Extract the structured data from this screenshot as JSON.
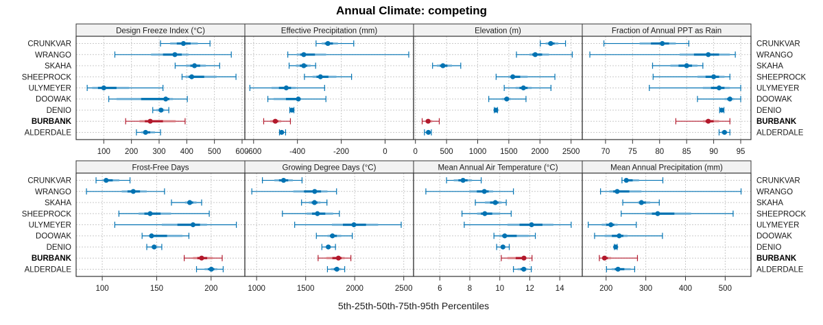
{
  "chart_data": {
    "type": "dot-interval",
    "title": "Annual Climate: competing",
    "xlabel": "5th-25th-50th-75th-95th Percentiles",
    "interval_definition": [
      "p5",
      "p25",
      "p50",
      "p75",
      "p95"
    ],
    "colors": {
      "default": "#0072B2",
      "default_light": "#6BAED6",
      "highlight": "#B2182B",
      "highlight_light": "#D97A80"
    },
    "categories": [
      "CRUNKVAR",
      "WRANGO",
      "SKAHA",
      "SHEEPROCK",
      "ULYMEYER",
      "DOOWAK",
      "DENIO",
      "BURBANK",
      "ALDERDALE"
    ],
    "highlight": "BURBANK",
    "panels": [
      {
        "title": "Design Freeze Index (°C)",
        "xlim": [
          0,
          610
        ],
        "ticks": [
          100,
          200,
          300,
          400,
          500,
          600
        ],
        "tick_labels": [
          "100",
          "200",
          "300",
          "400",
          "500",
          "600"
        ],
        "series": {
          "CRUNKVAR": [
            305,
            340,
            388,
            440,
            484
          ],
          "WRANGO": [
            140,
            271,
            357,
            407,
            561
          ],
          "SKAHA": [
            358,
            398,
            428,
            469,
            519
          ],
          "SHEEPROCK": [
            383,
            395,
            418,
            508,
            578
          ],
          "ULYMEYER": [
            40,
            58,
            100,
            192,
            314
          ],
          "DOOWAK": [
            118,
            146,
            324,
            350,
            402
          ],
          "DENIO": [
            277,
            290,
            307,
            320,
            335
          ],
          "BURBANK": [
            179,
            229,
            268,
            360,
            394
          ],
          "ALDERDALE": [
            218,
            235,
            251,
            285,
            305
          ]
        }
      },
      {
        "title": "Effective Precipitation (mm)",
        "xlim": [
          -640,
          130
        ],
        "ticks": [
          -600,
          -400,
          -200,
          0
        ],
        "tick_labels": [
          "-600",
          "-400",
          "-200",
          "0"
        ],
        "series": {
          "CRUNKVAR": [
            -315,
            -289,
            -261,
            -215,
            -143
          ],
          "WRANGO": [
            -444,
            -403,
            -371,
            -269,
            108
          ],
          "SKAHA": [
            -438,
            -407,
            -371,
            -340,
            -317
          ],
          "SHEEPROCK": [
            -368,
            -331,
            -295,
            -222,
            -153
          ],
          "ULYMEYER": [
            -617,
            -518,
            -451,
            -407,
            -276
          ],
          "DOOWAK": [
            -535,
            -509,
            -396,
            -384,
            -270
          ],
          "DENIO": [
            -435,
            -429,
            -425,
            -420,
            -416
          ],
          "BURBANK": [
            -554,
            -524,
            -501,
            -474,
            -432
          ],
          "ALDERDALE": [
            -482,
            -477,
            -472,
            -463,
            -454
          ]
        }
      },
      {
        "title": "Elevation (m)",
        "xlim": [
          -30,
          2680
        ],
        "ticks": [
          0,
          500,
          1000,
          1500,
          2000,
          2500
        ],
        "tick_labels": [
          "0",
          "500",
          "1000",
          "1500",
          "2000",
          "2500"
        ],
        "series": {
          "CRUNKVAR": [
            2006,
            2091,
            2173,
            2296,
            2411
          ],
          "WRANGO": [
            1623,
            1831,
            1924,
            2147,
            2519
          ],
          "SKAHA": [
            275,
            345,
            442,
            587,
            728
          ],
          "SHEEPROCK": [
            1296,
            1497,
            1564,
            1802,
            2240
          ],
          "ULYMEYER": [
            1426,
            1608,
            1735,
            1868,
            2177
          ],
          "DOOWAK": [
            1178,
            1386,
            1467,
            1534,
            1776
          ],
          "DENIO": [
            1267,
            1281,
            1293,
            1304,
            1319
          ],
          "BURBANK": [
            108,
            160,
            204,
            271,
            383
          ],
          "ALDERDALE": [
            145,
            175,
            208,
            227,
            256
          ]
        }
      },
      {
        "title": "Fraction of Annual PPT as Rain",
        "xlim": [
          65.7,
          96.9
        ],
        "ticks": [
          70,
          75,
          80,
          85,
          90,
          95
        ],
        "tick_labels": [
          "70",
          "75",
          "80",
          "85",
          "90",
          "95"
        ],
        "series": {
          "CRUNKVAR": [
            69.7,
            76.3,
            80.5,
            83.0,
            85.4
          ],
          "WRANGO": [
            67.1,
            83.7,
            89.0,
            93.0,
            94.0
          ],
          "SKAHA": [
            78.7,
            82.0,
            85.0,
            87.0,
            88.0
          ],
          "SHEEPROCK": [
            78.8,
            87.0,
            90.0,
            92.0,
            93.0
          ],
          "ULYMEYER": [
            78.1,
            88.0,
            91.0,
            93.0,
            95.0
          ],
          "DOOWAK": [
            87.0,
            92.0,
            93.0,
            93.8,
            95.0
          ],
          "DENIO": [
            91.1,
            91.3,
            91.5,
            91.7,
            91.9
          ],
          "BURBANK": [
            83.0,
            88.0,
            89.0,
            91.0,
            93.0
          ],
          "ALDERDALE": [
            91.0,
            91.4,
            92.0,
            92.5,
            93.0
          ]
        }
      },
      {
        "title": "Frost-Free Days",
        "xlim": [
          76,
          231
        ],
        "ticks": [
          100,
          150,
          200
        ],
        "tick_labels": [
          "100",
          "150",
          "200"
        ],
        "series": {
          "CRUNKVAR": [
            94.3,
            100.4,
            103.6,
            115.7,
            125.5
          ],
          "WRANGO": [
            85.5,
            117.9,
            128.5,
            140.9,
            157.2
          ],
          "SKAHA": [
            163.6,
            176.0,
            180.4,
            186.6,
            191.3
          ],
          "SHEEPROCK": [
            115.3,
            133.4,
            144.0,
            163.2,
            198.3
          ],
          "ULYMEYER": [
            111.5,
            154.7,
            183.4,
            196.2,
            223.2
          ],
          "DOOWAK": [
            136.6,
            143.0,
            145.3,
            173.8,
            179.6
          ],
          "DENIO": [
            140.9,
            145.1,
            147.7,
            151.5,
            154.7
          ],
          "BURBANK": [
            175.3,
            183.4,
            191.3,
            201.5,
            210.2
          ],
          "ALDERDALE": [
            186.6,
            194.0,
            200.2,
            205.7,
            211.1
          ]
        }
      },
      {
        "title": "Growing Degree Days (°C)",
        "xlim": [
          880,
          2600
        ],
        "ticks": [
          1000,
          1500,
          2000,
          2500
        ],
        "tick_labels": [
          "1000",
          "1500",
          "2000",
          "2500"
        ],
        "series": {
          "CRUNKVAR": [
            1059,
            1181,
            1275,
            1369,
            1463
          ],
          "WRANGO": [
            951,
            1374,
            1592,
            1722,
            1815
          ],
          "SKAHA": [
            1458,
            1533,
            1590,
            1651,
            1717
          ],
          "SHEEPROCK": [
            1263,
            1510,
            1620,
            1780,
            1844
          ],
          "ULYMEYER": [
            1388,
            1768,
            1992,
            2239,
            2474
          ],
          "DOOWAK": [
            1609,
            1722,
            1773,
            1863,
            1975
          ],
          "DENIO": [
            1665,
            1703,
            1731,
            1757,
            1804
          ],
          "BURBANK": [
            1627,
            1710,
            1834,
            1898,
            1961
          ],
          "ALDERDALE": [
            1722,
            1757,
            1818,
            1863,
            1898
          ]
        }
      },
      {
        "title": "Mean Annual Air Temperature (°C)",
        "xlim": [
          4.25,
          15.5
        ],
        "ticks": [
          6,
          8,
          10,
          12,
          14
        ],
        "tick_labels": [
          "6",
          "8",
          "10",
          "12",
          "14"
        ],
        "series": {
          "CRUNKVAR": [
            6.45,
            6.93,
            7.55,
            8.15,
            8.76
          ],
          "WRANGO": [
            5.07,
            7.97,
            8.97,
            9.55,
            10.91
          ],
          "SKAHA": [
            8.37,
            9.01,
            9.7,
            10.13,
            10.43
          ],
          "SHEEPROCK": [
            7.48,
            8.49,
            9.0,
            9.99,
            10.76
          ],
          "ULYMEYER": [
            7.63,
            10.51,
            12.12,
            13.57,
            14.76
          ],
          "DOOWAK": [
            9.61,
            9.99,
            10.33,
            11.93,
            12.37
          ],
          "DENIO": [
            9.79,
            10.06,
            10.21,
            10.36,
            10.63
          ],
          "BURBANK": [
            10.1,
            10.51,
            11.61,
            11.78,
            12.15
          ],
          "ALDERDALE": [
            10.91,
            11.18,
            11.6,
            11.85,
            12.1
          ]
        }
      },
      {
        "title": "Mean Annual Precipitation (mm)",
        "xlim": [
          140,
          565
        ],
        "ticks": [
          200,
          300,
          400,
          500
        ],
        "tick_labels": [
          "200",
          "300",
          "400",
          "500"
        ],
        "series": {
          "CRUNKVAR": [
            240,
            247,
            251,
            283,
            343
          ],
          "WRANGO": [
            186,
            208,
            228,
            289,
            540
          ],
          "SKAHA": [
            242,
            280,
            289,
            311,
            334
          ],
          "SHEEPROCK": [
            238,
            301,
            330,
            414,
            520
          ],
          "ULYMEYER": [
            155,
            189,
            212,
            229,
            276
          ],
          "DOOWAK": [
            171,
            196,
            233,
            254,
            342
          ],
          "DENIO": [
            221,
            223,
            224,
            226,
            228
          ],
          "BURBANK": [
            183,
            190,
            196,
            213,
            279
          ],
          "ALDERDALE": [
            201,
            214,
            230,
            262,
            272
          ]
        }
      }
    ]
  }
}
